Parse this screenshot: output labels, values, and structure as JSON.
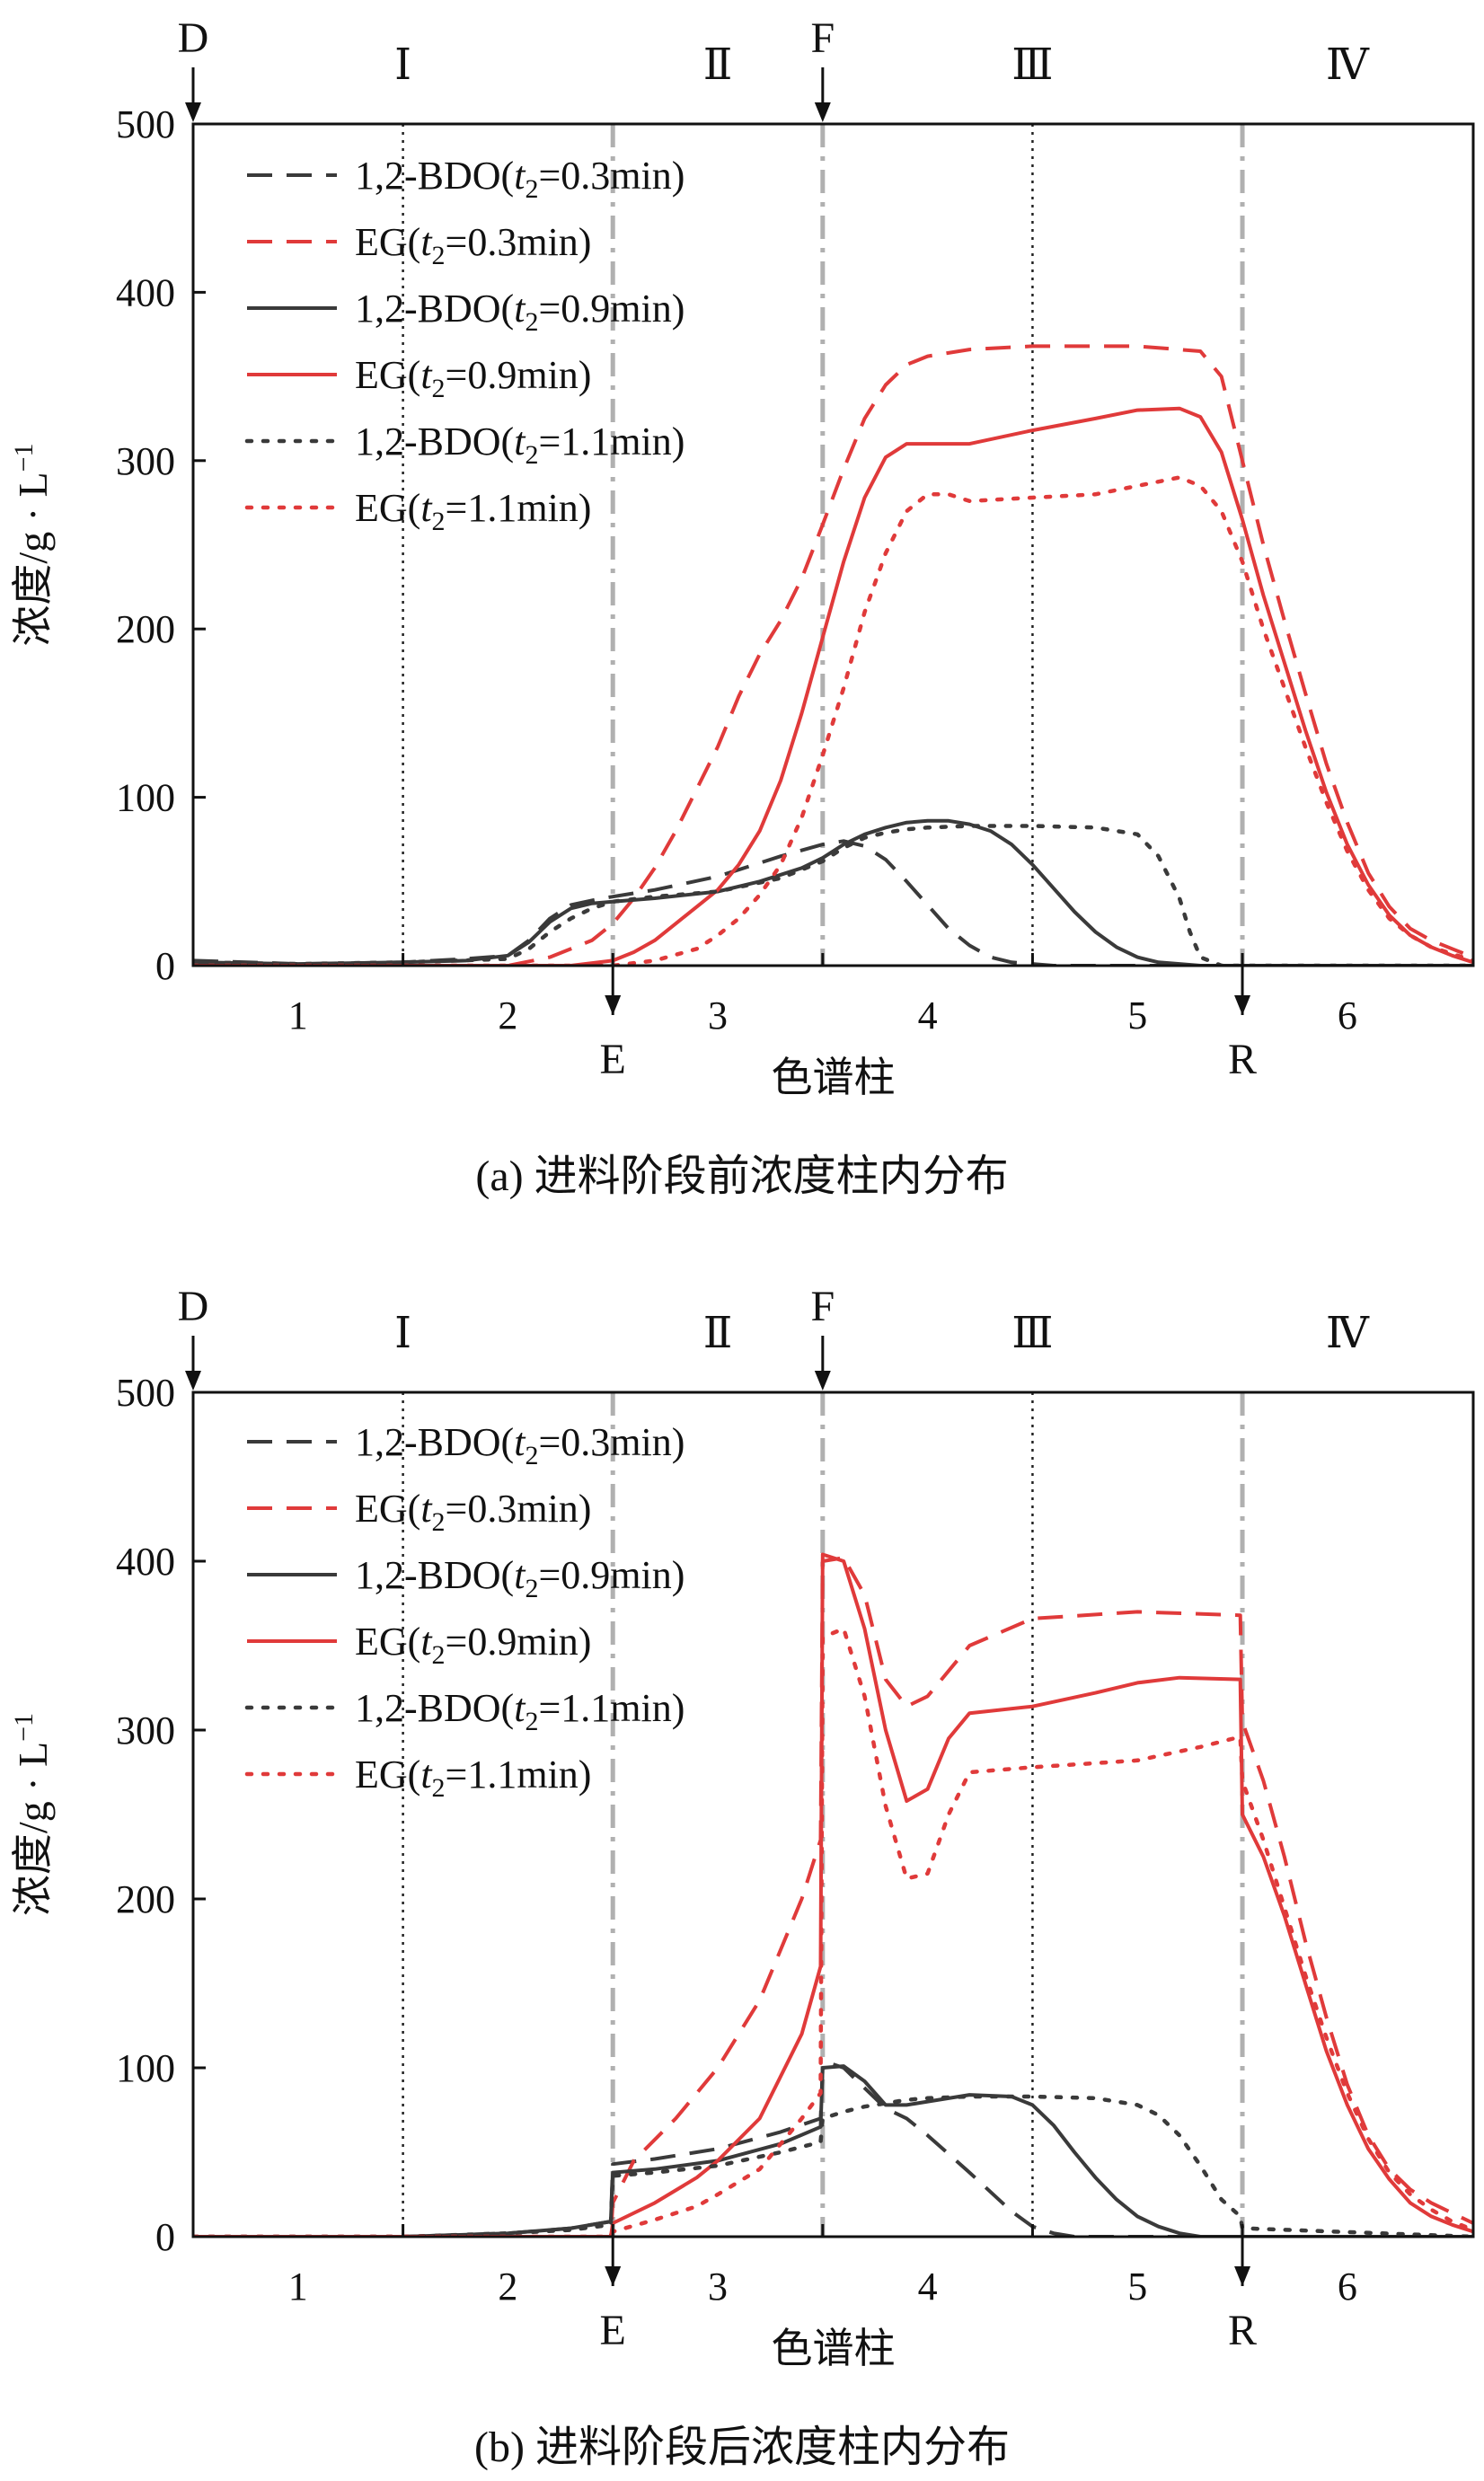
{
  "chart_data": [
    {
      "type": "line",
      "panel": "a",
      "caption": "(a) 进料阶段前浓度柱内分布",
      "xlabel": "色谱柱",
      "ylabel": "浓度/g · L⁻¹",
      "ylabel_parts": [
        "浓度/g · L",
        "−1"
      ],
      "xlim": [
        0.5,
        6.6
      ],
      "ylim": [
        0,
        500
      ],
      "yticks": [
        0,
        100,
        200,
        300,
        400,
        500
      ],
      "ytick_labels": [
        "0",
        "100",
        "200",
        "300",
        "400",
        "500"
      ],
      "columns": [
        {
          "label": "1",
          "x": 1
        },
        {
          "label": "2",
          "x": 2
        },
        {
          "label": "3",
          "x": 3
        },
        {
          "label": "4",
          "x": 4
        },
        {
          "label": "5",
          "x": 5
        },
        {
          "label": "6",
          "x": 6
        }
      ],
      "zones": [
        {
          "label": "Ⅰ",
          "x": 1.5
        },
        {
          "label": "Ⅱ",
          "x": 3.0
        },
        {
          "label": "Ⅲ",
          "x": 4.5
        },
        {
          "label": "Ⅳ",
          "x": 6.0
        }
      ],
      "ports": {
        "top": [
          {
            "label": "D",
            "x": 0.5
          },
          {
            "label": "F",
            "x": 3.5
          }
        ],
        "bottom": [
          {
            "label": "E",
            "x": 2.5
          },
          {
            "label": "R",
            "x": 5.5
          }
        ]
      },
      "boundaries": {
        "dashdot": [
          2.5,
          3.5,
          5.5
        ],
        "dotted": [
          1.5,
          4.5
        ]
      },
      "series": [
        {
          "name": "1,2-BDO(t2=0.3min)",
          "prefix": "1,2-BDO(",
          "suffix": "=0.3min)",
          "color": "#3a3a3a",
          "dash": "dash",
          "x": [
            0.5,
            1.0,
            1.5,
            1.8,
            2.0,
            2.1,
            2.2,
            2.3,
            2.45,
            2.5,
            2.7,
            3.0,
            3.3,
            3.5,
            3.6,
            3.7,
            3.8,
            3.9,
            4.0,
            4.1,
            4.2,
            4.3,
            4.4,
            4.5,
            4.6,
            6.6
          ],
          "y": [
            3,
            1,
            2,
            4,
            6,
            15,
            28,
            36,
            40,
            41,
            45,
            53,
            65,
            72,
            74,
            71,
            63,
            50,
            36,
            22,
            12,
            5,
            2,
            1,
            0,
            0
          ]
        },
        {
          "name": "EG(t2=0.3min)",
          "prefix": "EG(",
          "suffix": "=0.3min)",
          "color": "#e03a3a",
          "dash": "dash",
          "x": [
            0.5,
            1.5,
            2.0,
            2.2,
            2.4,
            2.5,
            2.6,
            2.7,
            2.8,
            2.9,
            3.0,
            3.1,
            3.2,
            3.3,
            3.4,
            3.5,
            3.6,
            3.7,
            3.8,
            3.9,
            4.0,
            4.2,
            4.5,
            5.0,
            5.3,
            5.4,
            5.5,
            5.6,
            5.7,
            5.8,
            5.9,
            6.0,
            6.1,
            6.2,
            6.3,
            6.4,
            6.5,
            6.6
          ],
          "y": [
            0,
            0,
            0,
            5,
            15,
            25,
            40,
            58,
            80,
            105,
            130,
            160,
            185,
            205,
            230,
            262,
            295,
            325,
            345,
            357,
            362,
            366,
            368,
            368,
            365,
            350,
            300,
            250,
            205,
            162,
            120,
            85,
            55,
            35,
            22,
            15,
            10,
            5
          ]
        },
        {
          "name": "1,2-BDO(t2=0.9min)",
          "prefix": "1,2-BDO(",
          "suffix": "=0.9min)",
          "color": "#3a3a3a",
          "dash": "solid",
          "x": [
            0.5,
            1.0,
            1.5,
            1.8,
            2.0,
            2.1,
            2.2,
            2.3,
            2.4,
            2.5,
            2.7,
            3.0,
            3.2,
            3.4,
            3.5,
            3.6,
            3.7,
            3.8,
            3.9,
            4.0,
            4.1,
            4.2,
            4.3,
            4.4,
            4.5,
            4.6,
            4.7,
            4.8,
            4.9,
            5.0,
            5.1,
            5.2,
            5.3,
            5.4,
            6.6
          ],
          "y": [
            2,
            1,
            2,
            3,
            6,
            14,
            26,
            34,
            37,
            38,
            40,
            44,
            50,
            58,
            64,
            72,
            78,
            82,
            85,
            86,
            86,
            84,
            80,
            72,
            60,
            46,
            32,
            20,
            11,
            5,
            2,
            1,
            0,
            0,
            0
          ]
        },
        {
          "name": "EG(t2=0.9min)",
          "prefix": "EG(",
          "suffix": "=0.9min)",
          "color": "#e03a3a",
          "dash": "solid",
          "x": [
            0.5,
            2.0,
            2.3,
            2.5,
            2.6,
            2.7,
            2.8,
            2.9,
            3.0,
            3.1,
            3.2,
            3.3,
            3.4,
            3.5,
            3.6,
            3.7,
            3.8,
            3.9,
            4.0,
            4.2,
            4.5,
            4.8,
            5.0,
            5.2,
            5.3,
            5.4,
            5.5,
            5.6,
            5.7,
            5.8,
            5.9,
            6.0,
            6.1,
            6.2,
            6.3,
            6.4,
            6.5,
            6.6
          ],
          "y": [
            0,
            0,
            0,
            3,
            8,
            15,
            25,
            35,
            45,
            60,
            80,
            110,
            150,
            195,
            240,
            278,
            302,
            310,
            310,
            310,
            318,
            325,
            330,
            331,
            326,
            305,
            265,
            220,
            180,
            140,
            103,
            72,
            48,
            30,
            18,
            11,
            6,
            2
          ]
        },
        {
          "name": "1,2-BDO(t2=1.1min)",
          "prefix": "1,2-BDO(",
          "suffix": "=1.1min)",
          "color": "#3a3a3a",
          "dash": "dot",
          "x": [
            0.5,
            1.0,
            1.5,
            2.0,
            2.1,
            2.2,
            2.3,
            2.4,
            2.5,
            2.7,
            3.0,
            3.3,
            3.5,
            3.6,
            3.7,
            3.8,
            3.9,
            4.0,
            4.2,
            4.5,
            4.8,
            5.0,
            5.1,
            5.2,
            5.25,
            5.3,
            5.4,
            6.6
          ],
          "y": [
            2,
            1,
            2,
            4,
            10,
            20,
            28,
            34,
            38,
            41,
            44,
            52,
            62,
            70,
            76,
            79,
            81,
            82,
            83,
            83,
            82,
            78,
            65,
            40,
            20,
            5,
            0,
            0
          ]
        },
        {
          "name": "EG(t2=1.1min)",
          "prefix": "EG(",
          "suffix": "=1.1min)",
          "color": "#e03a3a",
          "dash": "dot",
          "x": [
            0.5,
            2.5,
            2.7,
            2.9,
            3.0,
            3.1,
            3.2,
            3.3,
            3.4,
            3.5,
            3.6,
            3.7,
            3.8,
            3.9,
            4.0,
            4.1,
            4.2,
            4.5,
            4.8,
            5.0,
            5.2,
            5.3,
            5.4,
            5.5,
            5.6,
            5.7,
            5.8,
            5.9,
            6.0,
            6.1,
            6.2,
            6.3,
            6.4,
            6.5,
            6.6
          ],
          "y": [
            0,
            0,
            3,
            10,
            18,
            28,
            42,
            60,
            88,
            125,
            165,
            210,
            245,
            270,
            280,
            280,
            276,
            278,
            280,
            285,
            290,
            285,
            270,
            240,
            200,
            165,
            130,
            97,
            68,
            45,
            28,
            18,
            11,
            7,
            3
          ]
        }
      ]
    },
    {
      "type": "line",
      "panel": "b",
      "caption": "(b) 进料阶段后浓度柱内分布",
      "xlabel": "色谱柱",
      "ylabel": "浓度/g · L⁻¹",
      "ylabel_parts": [
        "浓度/g · L",
        "−1"
      ],
      "xlim": [
        0.5,
        6.6
      ],
      "ylim": [
        0,
        500
      ],
      "yticks": [
        0,
        100,
        200,
        300,
        400,
        500
      ],
      "ytick_labels": [
        "0",
        "100",
        "200",
        "300",
        "400",
        "500"
      ],
      "columns": [
        {
          "label": "1",
          "x": 1
        },
        {
          "label": "2",
          "x": 2
        },
        {
          "label": "3",
          "x": 3
        },
        {
          "label": "4",
          "x": 4
        },
        {
          "label": "5",
          "x": 5
        },
        {
          "label": "6",
          "x": 6
        }
      ],
      "zones": [
        {
          "label": "Ⅰ",
          "x": 1.5
        },
        {
          "label": "Ⅱ",
          "x": 3.0
        },
        {
          "label": "Ⅲ",
          "x": 4.5
        },
        {
          "label": "Ⅳ",
          "x": 6.0
        }
      ],
      "ports": {
        "top": [
          {
            "label": "D",
            "x": 0.5
          },
          {
            "label": "F",
            "x": 3.5
          }
        ],
        "bottom": [
          {
            "label": "E",
            "x": 2.5
          },
          {
            "label": "R",
            "x": 5.5
          }
        ]
      },
      "boundaries": {
        "dashdot": [
          2.5,
          3.5,
          5.5
        ],
        "dotted": [
          1.5,
          4.5
        ]
      },
      "series": [
        {
          "name": "1,2-BDO(t2=0.3min)",
          "prefix": "1,2-BDO(",
          "suffix": "=0.3min)",
          "color": "#3a3a3a",
          "dash": "dash",
          "x": [
            0.5,
            1.5,
            2.0,
            2.3,
            2.49,
            2.5,
            2.7,
            3.0,
            3.3,
            3.49,
            3.5,
            3.55,
            3.6,
            3.7,
            3.8,
            3.9,
            4.0,
            4.2,
            4.4,
            4.5,
            4.6,
            4.7,
            6.6
          ],
          "y": [
            0,
            0,
            2,
            5,
            9,
            43,
            46,
            52,
            62,
            70,
            100,
            102,
            100,
            88,
            76,
            70,
            60,
            38,
            15,
            6,
            2,
            0,
            0
          ]
        },
        {
          "name": "EG(t2=0.3min)",
          "prefix": "EG(",
          "suffix": "=0.3min)",
          "color": "#e03a3a",
          "dash": "dash",
          "x": [
            0.5,
            2.49,
            2.5,
            2.6,
            2.8,
            3.0,
            3.2,
            3.4,
            3.49,
            3.5,
            3.6,
            3.7,
            3.8,
            3.9,
            4.0,
            4.2,
            4.5,
            5.0,
            5.49,
            5.5,
            5.6,
            5.7,
            5.8,
            5.9,
            6.0,
            6.1,
            6.2,
            6.3,
            6.4,
            6.5,
            6.6
          ],
          "y": [
            0,
            0,
            20,
            45,
            70,
            100,
            140,
            200,
            235,
            400,
            402,
            380,
            330,
            314,
            320,
            350,
            366,
            370,
            368,
            305,
            270,
            225,
            175,
            130,
            90,
            60,
            40,
            28,
            20,
            14,
            8
          ]
        },
        {
          "name": "1,2-BDO(t2=0.9min)",
          "prefix": "1,2-BDO(",
          "suffix": "=0.9min)",
          "color": "#3a3a3a",
          "dash": "solid",
          "x": [
            0.5,
            1.5,
            2.0,
            2.3,
            2.49,
            2.5,
            2.7,
            3.0,
            3.3,
            3.49,
            3.5,
            3.6,
            3.7,
            3.8,
            3.9,
            4.0,
            4.2,
            4.4,
            4.5,
            4.6,
            4.7,
            4.8,
            4.9,
            5.0,
            5.1,
            5.2,
            5.3,
            5.4,
            6.6
          ],
          "y": [
            0,
            0,
            2,
            5,
            9,
            38,
            40,
            45,
            55,
            65,
            100,
            101,
            92,
            78,
            78,
            80,
            84,
            83,
            78,
            66,
            50,
            35,
            22,
            12,
            6,
            2,
            0,
            0,
            0
          ]
        },
        {
          "name": "EG(t2=0.9min)",
          "prefix": "EG(",
          "suffix": "=0.9min)",
          "color": "#e03a3a",
          "dash": "solid",
          "x": [
            0.5,
            2.49,
            2.5,
            2.7,
            2.9,
            3.0,
            3.2,
            3.4,
            3.49,
            3.5,
            3.6,
            3.7,
            3.8,
            3.9,
            4.0,
            4.1,
            4.2,
            4.5,
            4.8,
            5.0,
            5.2,
            5.49,
            5.5,
            5.6,
            5.7,
            5.8,
            5.9,
            6.0,
            6.1,
            6.2,
            6.3,
            6.4,
            6.5,
            6.6
          ],
          "y": [
            0,
            0,
            8,
            20,
            35,
            45,
            70,
            120,
            160,
            404,
            400,
            360,
            300,
            258,
            265,
            295,
            310,
            314,
            322,
            328,
            331,
            330,
            250,
            225,
            190,
            150,
            110,
            78,
            52,
            34,
            20,
            12,
            7,
            3
          ]
        },
        {
          "name": "1,2-BDO(t2=1.1min)",
          "prefix": "1,2-BDO(",
          "suffix": "=1.1min)",
          "color": "#3a3a3a",
          "dash": "dot",
          "x": [
            0.5,
            1.5,
            2.0,
            2.3,
            2.49,
            2.5,
            2.7,
            3.0,
            3.3,
            3.49,
            3.5,
            3.6,
            3.7,
            3.8,
            3.9,
            4.0,
            4.2,
            4.5,
            4.8,
            5.0,
            5.1,
            5.2,
            5.3,
            5.4,
            5.49,
            5.5,
            6.6
          ],
          "y": [
            0,
            0,
            2,
            4,
            7,
            36,
            38,
            42,
            50,
            56,
            70,
            74,
            77,
            79,
            81,
            82,
            83,
            83,
            82,
            78,
            72,
            60,
            42,
            22,
            12,
            5,
            0
          ]
        },
        {
          "name": "EG(t2=1.1min)",
          "prefix": "EG(",
          "suffix": "=1.1min)",
          "color": "#e03a3a",
          "dash": "dot",
          "x": [
            0.5,
            2.49,
            2.5,
            2.7,
            2.9,
            3.0,
            3.2,
            3.4,
            3.49,
            3.5,
            3.6,
            3.7,
            3.8,
            3.9,
            4.0,
            4.1,
            4.2,
            4.5,
            5.0,
            5.3,
            5.49,
            5.5,
            5.6,
            5.7,
            5.8,
            5.9,
            6.0,
            6.1,
            6.2,
            6.3,
            6.4,
            6.5,
            6.6
          ],
          "y": [
            0,
            0,
            3,
            10,
            18,
            25,
            40,
            70,
            85,
            355,
            360,
            320,
            255,
            212,
            215,
            250,
            275,
            278,
            282,
            290,
            296,
            270,
            235,
            195,
            155,
            118,
            85,
            58,
            38,
            25,
            16,
            9,
            4
          ]
        }
      ]
    }
  ]
}
